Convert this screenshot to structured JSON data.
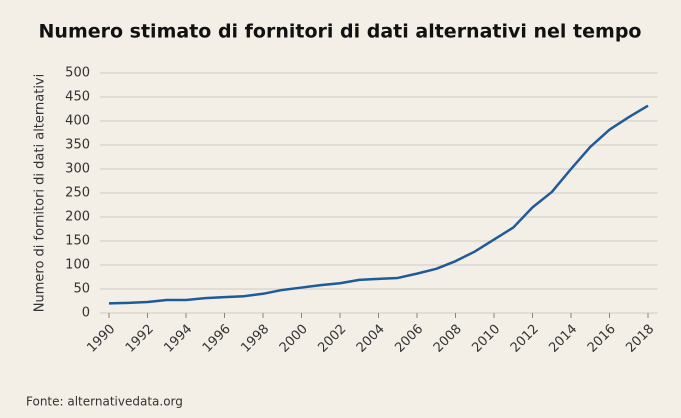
{
  "chart_data": {
    "type": "line",
    "title": "Numero stimato di fornitori di dati alternativi nel tempo",
    "y_label": "Numero di fornitori di dati alternativi",
    "source": "Fonte: alternativedata.org",
    "x": [
      1990,
      1991,
      1992,
      1993,
      1994,
      1995,
      1996,
      1997,
      1998,
      1999,
      2000,
      2001,
      2002,
      2003,
      2004,
      2005,
      2006,
      2007,
      2008,
      2009,
      2010,
      2011,
      2012,
      2013,
      2014,
      2015,
      2016,
      2017,
      2018
    ],
    "series": [
      {
        "color": "#1f5a99",
        "values": [
          20,
          21,
          23,
          27,
          27,
          31,
          33,
          35,
          40,
          48,
          53,
          58,
          62,
          69,
          71,
          73,
          82,
          92,
          108,
          128,
          153,
          178,
          220,
          252,
          300,
          346,
          382,
          408,
          432
        ]
      }
    ],
    "xlim": [
      1990,
      2018
    ],
    "xticks": [
      1990,
      1992,
      1994,
      1996,
      1998,
      2000,
      2002,
      2004,
      2006,
      2008,
      2010,
      2012,
      2014,
      2016,
      2018
    ],
    "ylim": [
      0,
      500
    ],
    "yticks": [
      0,
      50,
      100,
      150,
      200,
      250,
      300,
      350,
      400,
      450,
      500
    ],
    "grid": true
  }
}
